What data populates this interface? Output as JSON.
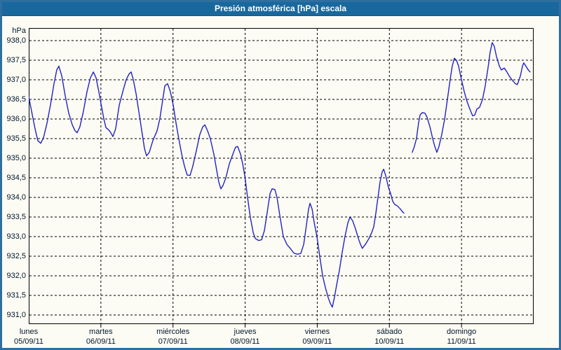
{
  "title": "Presión atmosférica [hPa] escala",
  "colors": {
    "titlebar_bg": "#19689d",
    "frame_border": "#2e6f9f",
    "page_bg": "#fcfcf4",
    "line": "#2222c4",
    "text": "#02162e",
    "grid": "#000000"
  },
  "chart_data": {
    "type": "line",
    "title": "Presión atmosférica [hPa] escala",
    "ylabel": "hPa",
    "xlabel": "",
    "ylim_hpa": [
      930.77,
      938.32
    ],
    "xlim_hours": [
      0,
      168
    ],
    "grid": "dashed",
    "legend": "none",
    "y_ticks": [
      {
        "v": 938.0,
        "label": "938,0"
      },
      {
        "v": 937.5,
        "label": "937,5"
      },
      {
        "v": 937.0,
        "label": "937,0"
      },
      {
        "v": 936.5,
        "label": "936,5"
      },
      {
        "v": 936.0,
        "label": "936,0"
      },
      {
        "v": 935.5,
        "label": "935,5"
      },
      {
        "v": 935.0,
        "label": "935,0"
      },
      {
        "v": 934.5,
        "label": "934,5"
      },
      {
        "v": 934.0,
        "label": "934,0"
      },
      {
        "v": 933.5,
        "label": "933,5"
      },
      {
        "v": 933.0,
        "label": "933,0"
      },
      {
        "v": 932.5,
        "label": "932,5"
      },
      {
        "v": 932.0,
        "label": "932,0"
      },
      {
        "v": 931.5,
        "label": "931,5"
      },
      {
        "v": 931.0,
        "label": "931,0"
      }
    ],
    "x_ticks": [
      {
        "day": "lunes",
        "date": "05/09/11"
      },
      {
        "day": "martes",
        "date": "06/09/11"
      },
      {
        "day": "miércoles",
        "date": "07/09/11"
      },
      {
        "day": "jueves",
        "date": "08/09/11"
      },
      {
        "day": "viernes",
        "date": "09/09/11"
      },
      {
        "day": "sábado",
        "date": "10/09/11"
      },
      {
        "day": "domingo",
        "date": "11/09/11"
      }
    ],
    "series": [
      {
        "name": "Presión atmosférica [hPa]",
        "units": "hPa",
        "x_units": "hours from lunes 00:00",
        "segments": [
          [
            [
              0,
              936.57
            ],
            [
              1.2,
              936.1
            ],
            [
              2.1,
              935.75
            ],
            [
              3,
              935.45
            ],
            [
              4,
              935.38
            ],
            [
              4.9,
              935.52
            ],
            [
              6.1,
              935.9
            ],
            [
              7.2,
              936.35
            ],
            [
              8.4,
              936.9
            ],
            [
              9.3,
              937.25
            ],
            [
              10,
              937.35
            ],
            [
              11,
              937.1
            ],
            [
              12.1,
              936.6
            ],
            [
              13.3,
              936.15
            ],
            [
              14.5,
              935.85
            ],
            [
              15.4,
              935.7
            ],
            [
              16.1,
              935.65
            ],
            [
              17,
              935.8
            ],
            [
              18.2,
              936.2
            ],
            [
              19.4,
              936.7
            ],
            [
              20.5,
              937.05
            ],
            [
              21.5,
              937.2
            ],
            [
              22.4,
              937.05
            ],
            [
              23.3,
              936.7
            ],
            [
              24,
              936.4
            ],
            [
              25,
              936.0
            ],
            [
              25.7,
              935.78
            ],
            [
              26.6,
              935.72
            ],
            [
              27.3,
              935.65
            ],
            [
              28,
              935.55
            ],
            [
              28.9,
              935.75
            ],
            [
              30.1,
              936.35
            ],
            [
              31.3,
              936.7
            ],
            [
              32.4,
              937.0
            ],
            [
              33.4,
              937.15
            ],
            [
              34.1,
              937.2
            ],
            [
              34.8,
              937.0
            ],
            [
              35.7,
              936.65
            ],
            [
              36.6,
              936.2
            ],
            [
              37.8,
              935.6
            ],
            [
              38.5,
              935.25
            ],
            [
              39.2,
              935.06
            ],
            [
              40.1,
              935.15
            ],
            [
              41.3,
              935.45
            ],
            [
              42.7,
              935.7
            ],
            [
              43.6,
              936.0
            ],
            [
              44.6,
              936.5
            ],
            [
              45.3,
              936.85
            ],
            [
              46.2,
              936.9
            ],
            [
              47.1,
              936.7
            ],
            [
              48.1,
              936.35
            ],
            [
              49,
              935.9
            ],
            [
              49.9,
              935.5
            ],
            [
              50.9,
              935.1
            ],
            [
              51.8,
              934.8
            ],
            [
              52.7,
              934.57
            ],
            [
              53.7,
              934.56
            ],
            [
              54.6,
              934.8
            ],
            [
              55.8,
              935.2
            ],
            [
              56.9,
              935.6
            ],
            [
              57.9,
              935.8
            ],
            [
              58.6,
              935.85
            ],
            [
              59.5,
              935.7
            ],
            [
              60.4,
              935.5
            ],
            [
              61.6,
              935.1
            ],
            [
              62.5,
              934.7
            ],
            [
              63.2,
              934.4
            ],
            [
              63.9,
              934.22
            ],
            [
              64.6,
              934.3
            ],
            [
              65.6,
              934.5
            ],
            [
              66.7,
              934.85
            ],
            [
              67.9,
              935.1
            ],
            [
              68.8,
              935.28
            ],
            [
              69.5,
              935.3
            ],
            [
              70.5,
              935.1
            ],
            [
              71.2,
              934.85
            ],
            [
              71.9,
              934.55
            ],
            [
              72.8,
              934.0
            ],
            [
              73.7,
              933.5
            ],
            [
              74.7,
              933.1
            ],
            [
              75.4,
              932.95
            ],
            [
              76.5,
              932.9
            ],
            [
              77.5,
              932.92
            ],
            [
              78.4,
              933.15
            ],
            [
              79.3,
              933.6
            ],
            [
              80.3,
              934.1
            ],
            [
              81,
              934.22
            ],
            [
              81.9,
              934.2
            ],
            [
              82.6,
              934.0
            ],
            [
              83.5,
              933.55
            ],
            [
              84.7,
              933.0
            ],
            [
              85.9,
              932.8
            ],
            [
              87,
              932.7
            ],
            [
              88.2,
              932.58
            ],
            [
              89.4,
              932.55
            ],
            [
              90.5,
              932.57
            ],
            [
              91.5,
              932.8
            ],
            [
              92.4,
              933.3
            ],
            [
              93.1,
              933.7
            ],
            [
              93.6,
              933.85
            ],
            [
              94.3,
              933.7
            ],
            [
              95,
              933.35
            ],
            [
              95.9,
              933.0
            ],
            [
              96.8,
              932.5
            ],
            [
              97.8,
              932.0
            ],
            [
              98.7,
              931.7
            ],
            [
              99.6,
              931.45
            ],
            [
              100.3,
              931.3
            ],
            [
              101,
              931.2
            ],
            [
              101.7,
              931.45
            ],
            [
              102.4,
              931.75
            ],
            [
              103.4,
              932.15
            ],
            [
              104.3,
              932.6
            ],
            [
              105.2,
              933.0
            ],
            [
              106.2,
              933.35
            ],
            [
              106.9,
              933.5
            ],
            [
              107.8,
              933.4
            ],
            [
              108.7,
              933.2
            ],
            [
              109.7,
              932.95
            ],
            [
              110.4,
              932.8
            ],
            [
              111,
              932.7
            ],
            [
              112,
              932.8
            ],
            [
              113.2,
              932.95
            ],
            [
              114.1,
              933.1
            ],
            [
              114.8,
              933.25
            ],
            [
              115.5,
              933.6
            ],
            [
              116.2,
              934.0
            ],
            [
              116.9,
              934.4
            ],
            [
              117.6,
              934.65
            ],
            [
              118.1,
              934.72
            ],
            [
              118.8,
              934.55
            ],
            [
              119.7,
              934.25
            ],
            [
              120.4,
              934.1
            ],
            [
              121.1,
              933.9
            ],
            [
              121.8,
              933.82
            ],
            [
              122.7,
              933.78
            ],
            [
              123.7,
              933.7
            ],
            [
              124.4,
              933.63
            ],
            [
              124.8,
              933.6
            ]
          ],
          [
            [
              127.6,
              935.15
            ],
            [
              128.3,
              935.3
            ],
            [
              129,
              935.5
            ],
            [
              129.7,
              935.9
            ],
            [
              130.2,
              936.1
            ],
            [
              130.9,
              936.16
            ],
            [
              131.8,
              936.15
            ],
            [
              132.5,
              936.05
            ],
            [
              133.5,
              935.8
            ],
            [
              134.4,
              935.5
            ],
            [
              135.1,
              935.3
            ],
            [
              135.8,
              935.15
            ],
            [
              136.5,
              935.3
            ],
            [
              137.4,
              935.6
            ],
            [
              138.4,
              936.0
            ],
            [
              139.3,
              936.5
            ],
            [
              140.2,
              937.0
            ],
            [
              140.9,
              937.35
            ],
            [
              141.6,
              937.55
            ],
            [
              142.3,
              937.5
            ],
            [
              143,
              937.35
            ],
            [
              144,
              937.0
            ],
            [
              144.9,
              936.7
            ],
            [
              145.8,
              936.45
            ],
            [
              146.8,
              936.25
            ],
            [
              147.7,
              936.08
            ],
            [
              148.4,
              936.1
            ],
            [
              149.1,
              936.25
            ],
            [
              150,
              936.3
            ],
            [
              151,
              936.5
            ],
            [
              151.9,
              936.85
            ],
            [
              152.8,
              937.3
            ],
            [
              153.5,
              937.7
            ],
            [
              154.2,
              937.95
            ],
            [
              154.9,
              937.85
            ],
            [
              155.6,
              937.6
            ],
            [
              156.6,
              937.35
            ],
            [
              157.3,
              937.25
            ],
            [
              158.2,
              937.3
            ],
            [
              159.1,
              937.2
            ],
            [
              160,
              937.08
            ],
            [
              161,
              936.98
            ],
            [
              161.9,
              936.9
            ],
            [
              162.6,
              936.88
            ],
            [
              163.6,
              937.1
            ],
            [
              164.3,
              937.35
            ],
            [
              164.7,
              937.43
            ],
            [
              165.4,
              937.35
            ],
            [
              166.1,
              937.26
            ],
            [
              166.8,
              937.2
            ]
          ]
        ]
      }
    ]
  }
}
